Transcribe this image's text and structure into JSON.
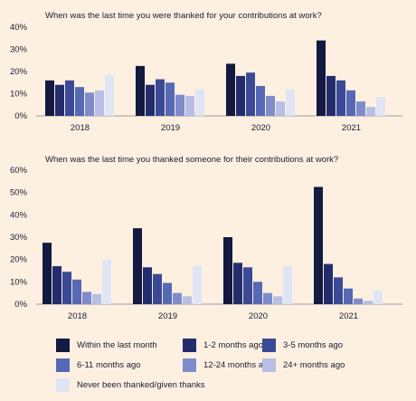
{
  "legend": [
    {
      "key": "s0",
      "label": "Within the last month",
      "color": "#13193f"
    },
    {
      "key": "s1",
      "label": "1-2 months ago",
      "color": "#232d6e"
    },
    {
      "key": "s2",
      "label": "3-5 months ago",
      "color": "#3b4a96"
    },
    {
      "key": "s3",
      "label": "6-11 months ago",
      "color": "#5669b4"
    },
    {
      "key": "s4",
      "label": "12-24 months ago",
      "color": "#7f8ccc"
    },
    {
      "key": "s5",
      "label": "24+ months ago",
      "color": "#b7bfe6"
    },
    {
      "key": "s6",
      "label": "Never been thanked/given thanks",
      "color": "#dfe5f5"
    }
  ],
  "chart_data": [
    {
      "type": "bar",
      "title": "When was the last time you were thanked for your contributions at work?",
      "categories": [
        "2018",
        "2019",
        "2020",
        "2021"
      ],
      "ylim": [
        0,
        40
      ],
      "yticks": [
        "0%",
        "10%",
        "20%",
        "30%",
        "40%"
      ],
      "grid": false,
      "series": [
        {
          "name": "Within the last month",
          "values": [
            16,
            22.5,
            23.5,
            34
          ]
        },
        {
          "name": "1-2 months ago",
          "values": [
            14,
            14,
            18,
            18
          ]
        },
        {
          "name": "3-5 months ago",
          "values": [
            16,
            16.5,
            19.5,
            16
          ]
        },
        {
          "name": "6-11 months ago",
          "values": [
            13,
            15,
            13.5,
            11.5
          ]
        },
        {
          "name": "12-24 months ago",
          "values": [
            10.5,
            9.5,
            9,
            6.5
          ]
        },
        {
          "name": "24+ months ago",
          "values": [
            11.5,
            9,
            6.5,
            4
          ]
        },
        {
          "name": "Never been thanked/given thanks",
          "values": [
            18.5,
            12,
            12,
            8.5
          ]
        }
      ]
    },
    {
      "type": "bar",
      "title": "When was the last time you thanked someone for their contributions at work?",
      "categories": [
        "2018",
        "2019",
        "2020",
        "2021"
      ],
      "ylim": [
        0,
        60
      ],
      "yticks": [
        "0%",
        "10%",
        "20%",
        "30%",
        "40%",
        "50%",
        "60%"
      ],
      "grid": false,
      "series": [
        {
          "name": "Within the last month",
          "values": [
            27.5,
            34,
            30,
            52.5
          ]
        },
        {
          "name": "1-2 months ago",
          "values": [
            17,
            16.5,
            18.5,
            18
          ]
        },
        {
          "name": "3-5 months ago",
          "values": [
            14.5,
            13.5,
            16.5,
            12
          ]
        },
        {
          "name": "6-11 months ago",
          "values": [
            11,
            9.5,
            10,
            7
          ]
        },
        {
          "name": "12-24 months ago",
          "values": [
            5.5,
            5,
            5,
            2.5
          ]
        },
        {
          "name": "24+ months ago",
          "values": [
            4.5,
            3.5,
            3.5,
            1.5
          ]
        },
        {
          "name": "Never been thanked/given thanks",
          "values": [
            20,
            17,
            17,
            6
          ]
        }
      ]
    }
  ]
}
